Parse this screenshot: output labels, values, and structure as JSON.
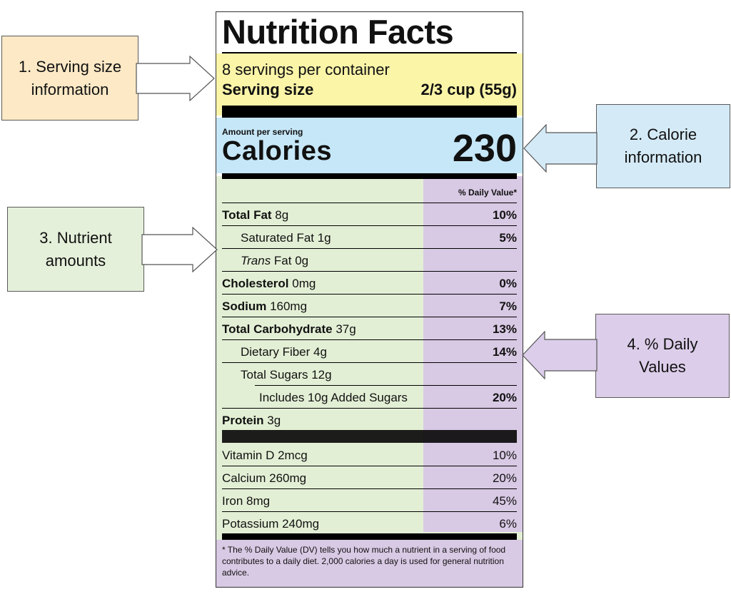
{
  "label": {
    "title": "Nutrition Facts",
    "servings_per_container": "8 servings per container",
    "serving_size_label": "Serving size",
    "serving_size_value": "2/3 cup (55g)",
    "amount_per_serving": "Amount per serving",
    "calories_label": "Calories",
    "calories_value": "230",
    "daily_value_header": "% Daily Value*",
    "nutrients": [
      {
        "name": "Total Fat",
        "amount": " 8g",
        "dv": "10%"
      },
      {
        "name": "Saturated Fat 1g",
        "dv": "5%"
      },
      {
        "name_italic": "Trans",
        "amount": " Fat 0g"
      },
      {
        "name": "Cholesterol",
        "amount": " 0mg",
        "dv": "0%"
      },
      {
        "name": "Sodium",
        "amount": " 160mg",
        "dv": "7%"
      },
      {
        "name": "Total Carbohydrate",
        "amount": " 37g",
        "dv": "13%"
      },
      {
        "name": "Dietary Fiber 4g",
        "dv": "14%"
      },
      {
        "name": "Total Sugars 12g"
      },
      {
        "name": "Includes 10g Added Sugars",
        "dv": "20%"
      },
      {
        "name": "Protein",
        "amount": " 3g"
      }
    ],
    "vitamins": [
      {
        "name": "Vitamin D 2mcg",
        "dv": "10%"
      },
      {
        "name": "Calcium 260mg",
        "dv": "20%"
      },
      {
        "name": "Iron 8mg",
        "dv": "45%"
      },
      {
        "name": "Potassium 240mg",
        "dv": "6%"
      }
    ],
    "footnote": "* The % Daily Value (DV) tells you how much a nutrient in a serving of food contributes to a daily diet. 2,000 calories a day is used for general nutrition advice."
  },
  "callouts": {
    "serving": {
      "line1": "1. Serving size",
      "line2": "information"
    },
    "calorie": {
      "line1": "2. Calorie",
      "line2": "information"
    },
    "nutrient": {
      "line1": "3. Nutrient",
      "line2": "amounts"
    },
    "dv": {
      "line1": "4. % Daily",
      "line2": "Values"
    }
  },
  "colors": {
    "serving": "#fbf5a8",
    "calorie": "#c6e7f7",
    "nutrient": "#e3efd5",
    "daily_value": "#d8c9e4",
    "callout_serving": "#fde9c6",
    "callout_calorie": "#d4eaf7",
    "callout_nutrient": "#e5f0da",
    "callout_dv": "#dccdea"
  }
}
